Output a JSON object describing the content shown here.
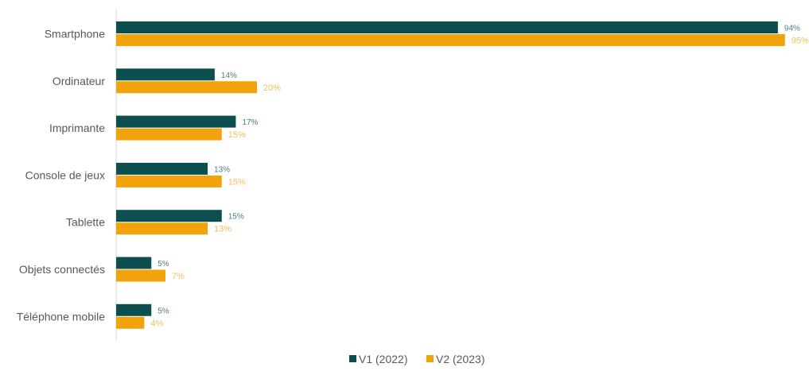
{
  "chart_data": {
    "type": "bar",
    "orientation": "horizontal",
    "categories": [
      "Smartphone",
      "Ordinateur",
      "Imprimante",
      "Console de jeux",
      "Tablette",
      "Objets connectés",
      "Téléphone mobile"
    ],
    "series": [
      {
        "name": "V1 (2022)",
        "color": "#0d4f4f",
        "label_color": "#4e7d7d",
        "values": [
          94,
          14,
          17,
          13,
          15,
          5,
          5
        ],
        "labels": [
          "94%",
          "14%",
          "17%",
          "13%",
          "15%",
          "5%",
          "5%"
        ]
      },
      {
        "name": "V2 (2023)",
        "color": "#f0a30a",
        "label_color": "#f3be58",
        "values": [
          95,
          20,
          15,
          15,
          13,
          7,
          4
        ],
        "labels": [
          "95%",
          "20%",
          "15%",
          "15%",
          "13%",
          "7%",
          "4%"
        ]
      }
    ],
    "xlim": [
      0,
      100
    ],
    "grid": false,
    "legend_position": "bottom-center",
    "axis_line_color": "#d9d9d9",
    "title": "",
    "xlabel": "",
    "ylabel": ""
  }
}
